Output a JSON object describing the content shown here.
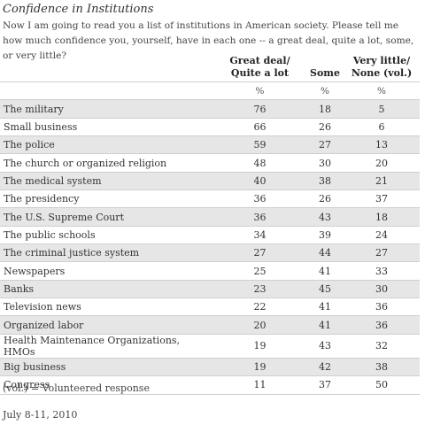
{
  "chart_data": {
    "type": "table",
    "title": "Confidence in Institutions",
    "subtitle": "Now I am going to read you a list of institutions in American society. Please tell me how much confidence you, yourself, have in each one -- a great deal, quite a lot, some, or very little?",
    "columns": [
      "Great deal/ Quite a lot",
      "Some",
      "Very little/ None (vol.)"
    ],
    "units": [
      "%",
      "%",
      "%"
    ],
    "rows": [
      {
        "label": "The military",
        "values": [
          76,
          18,
          5
        ]
      },
      {
        "label": "Small business",
        "values": [
          66,
          26,
          6
        ]
      },
      {
        "label": "The police",
        "values": [
          59,
          27,
          13
        ]
      },
      {
        "label": "The church or organized religion",
        "values": [
          48,
          30,
          20
        ]
      },
      {
        "label": "The medical system",
        "values": [
          40,
          38,
          21
        ]
      },
      {
        "label": "The presidency",
        "values": [
          36,
          26,
          37
        ]
      },
      {
        "label": "The U.S. Supreme Court",
        "values": [
          36,
          43,
          18
        ]
      },
      {
        "label": "The public schools",
        "values": [
          34,
          39,
          24
        ]
      },
      {
        "label": "The criminal justice system",
        "values": [
          27,
          44,
          27
        ]
      },
      {
        "label": "Newspapers",
        "values": [
          25,
          41,
          33
        ]
      },
      {
        "label": "Banks",
        "values": [
          23,
          45,
          30
        ]
      },
      {
        "label": "Television news",
        "values": [
          22,
          41,
          36
        ]
      },
      {
        "label": "Organized labor",
        "values": [
          20,
          41,
          36
        ]
      },
      {
        "label": "Health Maintenance Organizations, HMOs",
        "values": [
          19,
          43,
          32
        ]
      },
      {
        "label": "Big business",
        "values": [
          19,
          42,
          38
        ]
      },
      {
        "label": "Congress",
        "values": [
          11,
          37,
          50
        ]
      }
    ],
    "footnote": "(vol.) = Volunteered response",
    "date": "July 8-11, 2010"
  }
}
